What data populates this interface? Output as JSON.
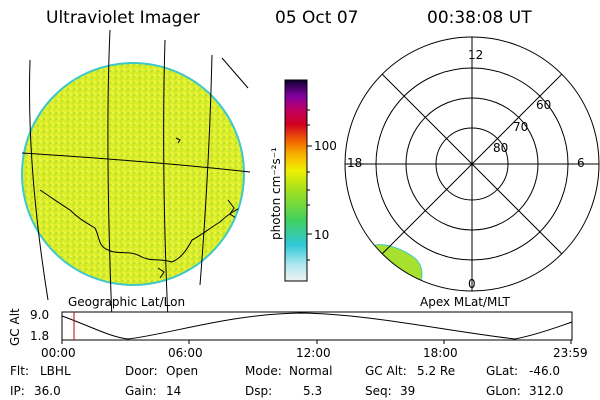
{
  "header": {
    "instrument": "Ultraviolet Imager",
    "date": "05 Oct 07",
    "time": "00:38:08 UT"
  },
  "colorbar": {
    "unit_label": "photon cm⁻²s⁻¹",
    "ticks": [
      "100",
      "10"
    ]
  },
  "left_panel": {
    "caption": "Geographic Lat/Lon"
  },
  "right_panel": {
    "caption": "Apex MLat/MLT",
    "mlt_labels": [
      "12",
      "18",
      "6",
      "0"
    ],
    "mlat_labels": [
      "60",
      "70",
      "80"
    ]
  },
  "timeline": {
    "ylabel": "GC Alt",
    "y_ticks": [
      "9.0",
      "1.8"
    ],
    "x_ticks": [
      "00:00",
      "06:00",
      "12:00",
      "18:00",
      "23:59"
    ]
  },
  "footer": {
    "row1": [
      {
        "label": "Flt:",
        "value": "LBHL"
      },
      {
        "label": "Door:",
        "value": "Open"
      },
      {
        "label": "Mode:",
        "value": "Normal"
      },
      {
        "label": "GC Alt:",
        "value": "5.2 Re"
      },
      {
        "label": "GLat:",
        "value": "-46.0"
      }
    ],
    "row2": [
      {
        "label": "IP:",
        "value": "36.0"
      },
      {
        "label": "Gain:",
        "value": "14"
      },
      {
        "label": "Dsp:",
        "value": "5.3"
      },
      {
        "label": "Seq:",
        "value": "39"
      },
      {
        "label": "GLon:",
        "value": "312.0"
      }
    ]
  },
  "colors": {
    "disk_fill": "#e0f020",
    "disk_edge": "#40c8c8",
    "auroral_blob": "#a8e030",
    "marker": "#c00000"
  }
}
